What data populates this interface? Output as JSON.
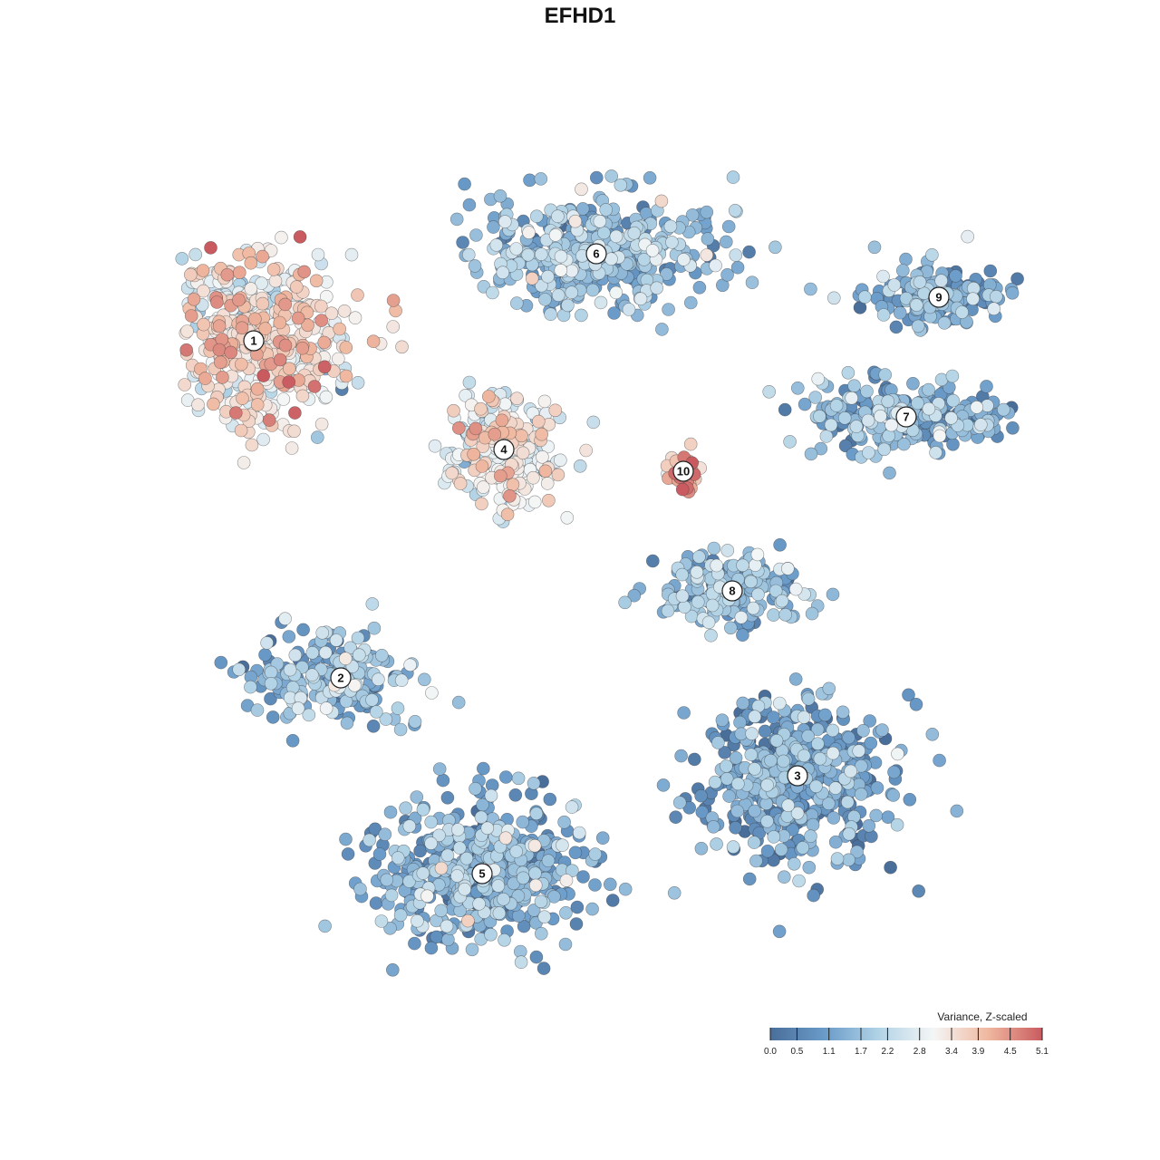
{
  "chart_data": {
    "type": "scatter",
    "title": "EFHD1",
    "xlabel": "",
    "ylabel": "",
    "grid": false,
    "legend_placement": "bottom-right",
    "color_scale": {
      "title": "Variance, Z-scaled",
      "min": 0.0,
      "max": 5.1,
      "ticks": [
        "0.0",
        "0.5",
        "1.1",
        "1.7",
        "2.2",
        "2.8",
        "3.4",
        "3.9",
        "4.5",
        "5.1"
      ],
      "tick_values": [
        0.0,
        0.5,
        1.1,
        1.7,
        2.2,
        2.8,
        3.4,
        3.9,
        4.5,
        5.1
      ],
      "colors": [
        "#4a6e9a",
        "#6a9bc9",
        "#b2d3e6",
        "#f4f6f6",
        "#f0b8a0",
        "#c95b60"
      ]
    },
    "clusters": [
      {
        "label": "1",
        "x": -30.0,
        "y": 22.0,
        "mean_value": 3.2
      },
      {
        "label": "2",
        "x": -22.0,
        "y": -9.0,
        "mean_value": 1.6
      },
      {
        "label": "3",
        "x": 20.0,
        "y": -18.0,
        "mean_value": 1.0
      },
      {
        "label": "4",
        "x": -7.0,
        "y": 12.0,
        "mean_value": 2.9
      },
      {
        "label": "5",
        "x": -9.0,
        "y": -27.0,
        "mean_value": 1.3
      },
      {
        "label": "6",
        "x": 1.5,
        "y": 30.0,
        "mean_value": 1.6
      },
      {
        "label": "7",
        "x": 30.0,
        "y": 15.0,
        "mean_value": 1.4
      },
      {
        "label": "8",
        "x": 14.0,
        "y": -1.0,
        "mean_value": 1.5
      },
      {
        "label": "9",
        "x": 33.0,
        "y": 26.0,
        "mean_value": 1.4
      },
      {
        "label": "10",
        "x": 9.5,
        "y": 10.0,
        "mean_value": 3.9
      }
    ]
  }
}
